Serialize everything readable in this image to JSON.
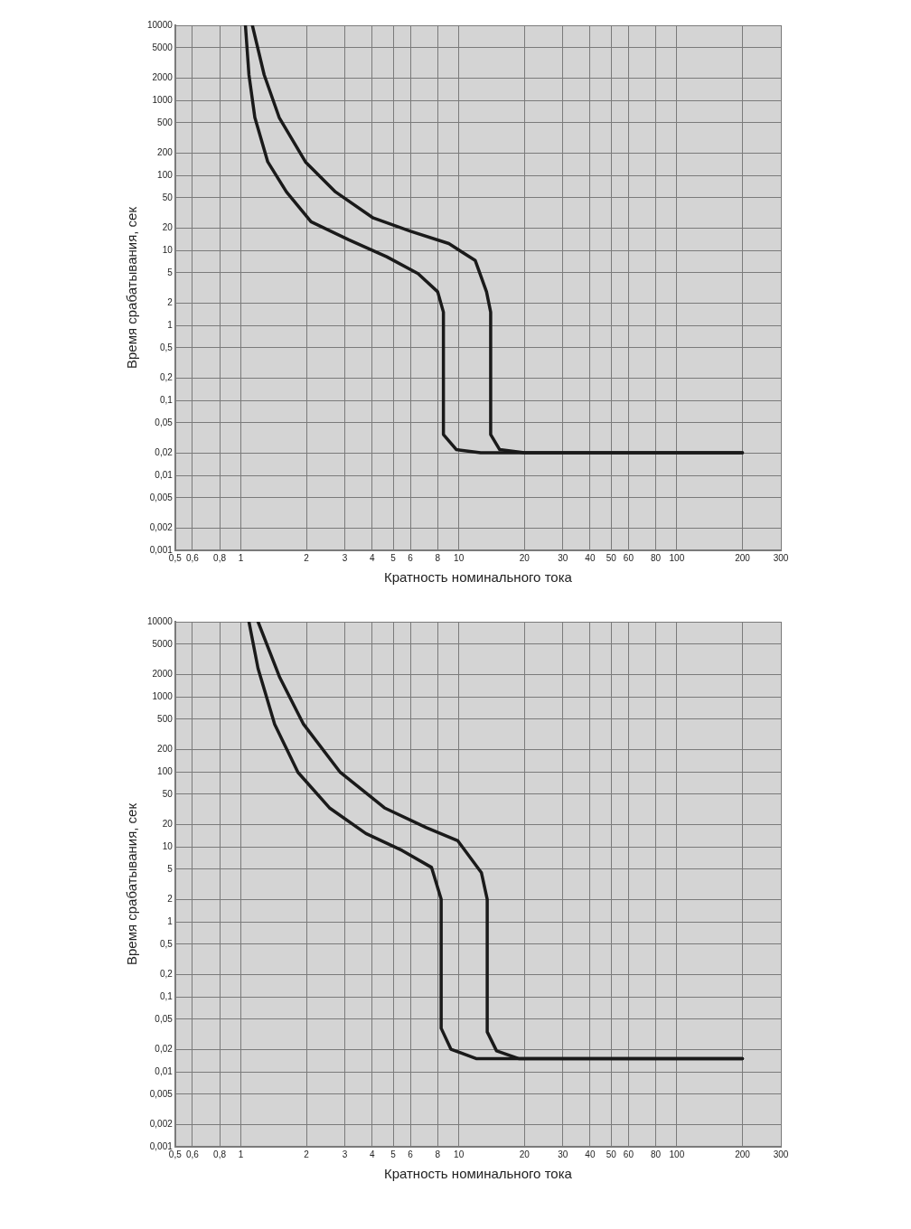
{
  "chart_data": [
    {
      "type": "line",
      "xlabel": "Кратность номинального тока",
      "ylabel": "Время срабатывания, сек",
      "log": "xy",
      "grid": true,
      "marker": "none",
      "xlim": [
        0.5,
        300
      ],
      "ylim": [
        0.001,
        10000
      ],
      "xticks": [
        {
          "value": 0.5,
          "label": "0,5"
        },
        {
          "value": 0.6,
          "label": "0,6"
        },
        {
          "value": 0.8,
          "label": "0,8"
        },
        1,
        2,
        3,
        4,
        5,
        6,
        8,
        10,
        20,
        30,
        40,
        50,
        60,
        80,
        100,
        200,
        300
      ],
      "yticks": [
        10000,
        5000,
        2000,
        1000,
        500,
        200,
        100,
        50,
        20,
        10,
        5,
        2,
        1,
        {
          "value": 0.5,
          "label": "0,5"
        },
        {
          "value": 0.2,
          "label": "0,2"
        },
        {
          "value": 0.1,
          "label": "0,1"
        },
        {
          "value": 0.05,
          "label": "0,05"
        },
        {
          "value": 0.02,
          "label": "0,02"
        },
        {
          "value": 0.01,
          "label": "0,01"
        },
        {
          "value": 0.005,
          "label": "0,005"
        },
        {
          "value": 0.002,
          "label": "0,002"
        },
        {
          "value": 0.001,
          "label": "0,001"
        }
      ],
      "series": [
        {
          "color": "#1a1a1a",
          "x": [
            1.05,
            1.09,
            1.16,
            1.33,
            1.62,
            2.1,
            3.13,
            4.67,
            6.5,
            8.0,
            8.5,
            8.5,
            9.75,
            12.6,
            200
          ],
          "values": [
            10000,
            2190,
            590,
            151,
            60,
            24,
            13.8,
            8.2,
            4.9,
            2.8,
            1.5,
            0.035,
            0.022,
            0.02,
            0.02
          ]
        },
        {
          "color": "#1a1a1a",
          "x": [
            1.13,
            1.28,
            1.5,
            1.98,
            2.72,
            4.05,
            6.0,
            9.0,
            11.9,
            13.4,
            14,
            14,
            15.4,
            20,
            200
          ],
          "values": [
            10000,
            2190,
            590,
            151,
            60,
            27,
            18,
            12.3,
            7.3,
            2.8,
            1.5,
            0.035,
            0.022,
            0.02,
            0.02
          ]
        }
      ]
    },
    {
      "type": "line",
      "xlabel": "Кратность номинального тока",
      "ylabel": "Время срабатывания, сек",
      "log": "xy",
      "grid": true,
      "marker": "none",
      "xlim": [
        0.5,
        300
      ],
      "ylim": [
        0.001,
        10000
      ],
      "xticks": [
        {
          "value": 0.5,
          "label": "0,5"
        },
        {
          "value": 0.6,
          "label": "0,6"
        },
        {
          "value": 0.8,
          "label": "0,8"
        },
        1,
        2,
        3,
        4,
        5,
        6,
        8,
        10,
        20,
        30,
        40,
        50,
        60,
        80,
        100,
        200,
        300
      ],
      "yticks": [
        10000,
        5000,
        2000,
        1000,
        500,
        200,
        100,
        50,
        20,
        10,
        5,
        2,
        1,
        {
          "value": 0.5,
          "label": "0,5"
        },
        {
          "value": 0.2,
          "label": "0,2"
        },
        {
          "value": 0.1,
          "label": "0,1"
        },
        {
          "value": 0.05,
          "label": "0,05"
        },
        {
          "value": 0.02,
          "label": "0,02"
        },
        {
          "value": 0.01,
          "label": "0,01"
        },
        {
          "value": 0.005,
          "label": "0,005"
        },
        {
          "value": 0.002,
          "label": "0,002"
        },
        {
          "value": 0.001,
          "label": "0,001"
        }
      ],
      "series": [
        {
          "color": "#1a1a1a",
          "x": [
            1.09,
            1.2,
            1.43,
            1.83,
            2.55,
            3.75,
            5.5,
            7.5,
            8.3,
            8.3,
            9.2,
            12,
            200
          ],
          "values": [
            10000,
            2380,
            430,
            98,
            33,
            15,
            8.9,
            5.3,
            2.0,
            0.038,
            0.02,
            0.015,
            0.015
          ]
        },
        {
          "color": "#1a1a1a",
          "x": [
            1.2,
            1.51,
            1.94,
            2.86,
            4.56,
            7.1,
            9.9,
            12.7,
            13.5,
            13.5,
            14.9,
            18.8,
            200
          ],
          "values": [
            10000,
            1800,
            430,
            98,
            33,
            18,
            12,
            4.5,
            2.0,
            0.034,
            0.019,
            0.015,
            0.015
          ]
        }
      ]
    }
  ]
}
